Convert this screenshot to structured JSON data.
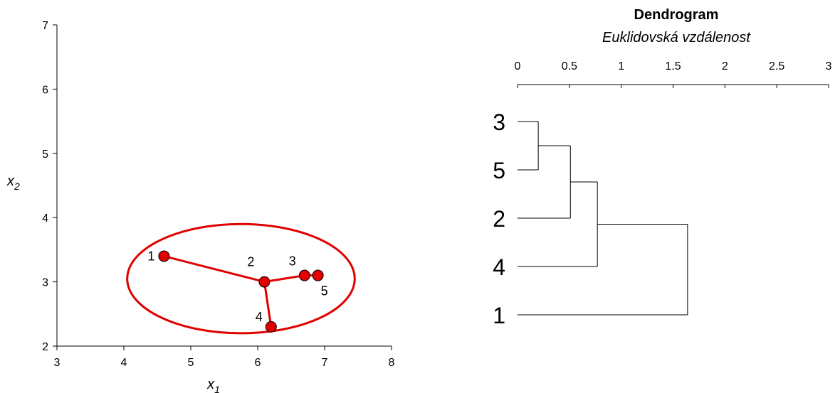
{
  "chart_data": [
    {
      "type": "scatter",
      "title": "",
      "xlabel_base": "x",
      "xlabel_sub": "1",
      "ylabel_base": "x",
      "ylabel_sub": "2",
      "xlim": [
        3,
        8
      ],
      "ylim": [
        2,
        7
      ],
      "xticks": [
        3,
        4,
        5,
        6,
        7,
        8
      ],
      "yticks": [
        2,
        3,
        4,
        5,
        6,
        7
      ],
      "grid": false,
      "series": [
        {
          "points": [
            {
              "label": "1",
              "x": 4.6,
              "y": 3.4
            },
            {
              "label": "2",
              "x": 6.1,
              "y": 3.0
            },
            {
              "label": "3",
              "x": 6.7,
              "y": 3.1
            },
            {
              "label": "4",
              "x": 6.2,
              "y": 2.3
            },
            {
              "label": "5",
              "x": 6.9,
              "y": 3.1
            }
          ]
        }
      ],
      "links": [
        [
          "1",
          "2"
        ],
        [
          "2",
          "3"
        ],
        [
          "3",
          "5"
        ],
        [
          "2",
          "4"
        ]
      ],
      "cluster_ellipse": {
        "cx": 5.75,
        "cy": 3.05,
        "rx": 1.7,
        "ry": 0.85
      },
      "color": "#e00000"
    },
    {
      "type": "dendrogram",
      "title": "Dendrogram",
      "subtitle": "Euklidovská vzdálenost",
      "xlim": [
        0,
        3
      ],
      "xticks": [
        "0",
        "0.5",
        "1",
        "1.5",
        "2",
        "2.5",
        "3"
      ],
      "leaves": [
        "3",
        "5",
        "2",
        "4",
        "1"
      ],
      "merges": [
        {
          "a": "3",
          "b": "5",
          "height": 0.2
        },
        {
          "a": "3-5",
          "b": "2",
          "height": 0.51
        },
        {
          "a": "3-5-2",
          "b": "4",
          "height": 0.77
        },
        {
          "a": "3-5-2-4",
          "b": "1",
          "height": 1.64
        }
      ]
    }
  ]
}
